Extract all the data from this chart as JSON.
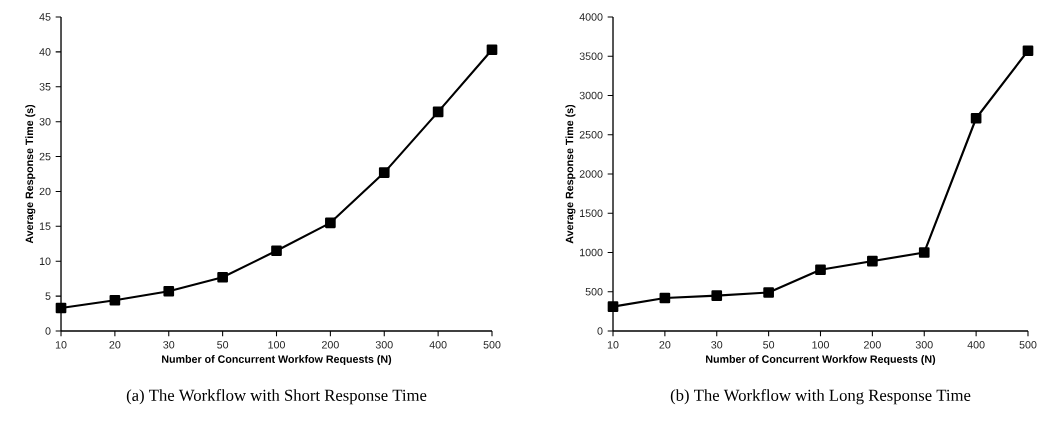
{
  "chart_data": [
    {
      "type": "line",
      "title": "(a) The Workflow with Short Response Time",
      "xlabel": "Number of Concurrent Workfow Requests (N)",
      "ylabel": "Average Response Time (s)",
      "categories": [
        "10",
        "20",
        "30",
        "50",
        "100",
        "200",
        "300",
        "400",
        "500"
      ],
      "values": [
        3.3,
        4.4,
        5.7,
        7.7,
        11.5,
        15.5,
        22.7,
        31.4,
        40.3
      ],
      "color": "#000000",
      "marker": "square",
      "ylim": [
        0,
        45
      ],
      "yticks": [
        0,
        5,
        10,
        15,
        20,
        25,
        30,
        35,
        40,
        45
      ]
    },
    {
      "type": "line",
      "title": "(b) The Workflow with Long Response Time",
      "xlabel": "Number of Concurrent Workfow Requests (N)",
      "ylabel": "Average Response Time (s)",
      "categories": [
        "10",
        "20",
        "30",
        "50",
        "100",
        "200",
        "300",
        "400",
        "500"
      ],
      "values": [
        310,
        420,
        450,
        490,
        780,
        890,
        1000,
        2710,
        3570
      ],
      "color": "#000000",
      "marker": "square",
      "ylim": [
        0,
        4000
      ],
      "yticks": [
        0,
        500,
        1000,
        1500,
        2000,
        2500,
        3000,
        3500,
        4000
      ]
    }
  ]
}
